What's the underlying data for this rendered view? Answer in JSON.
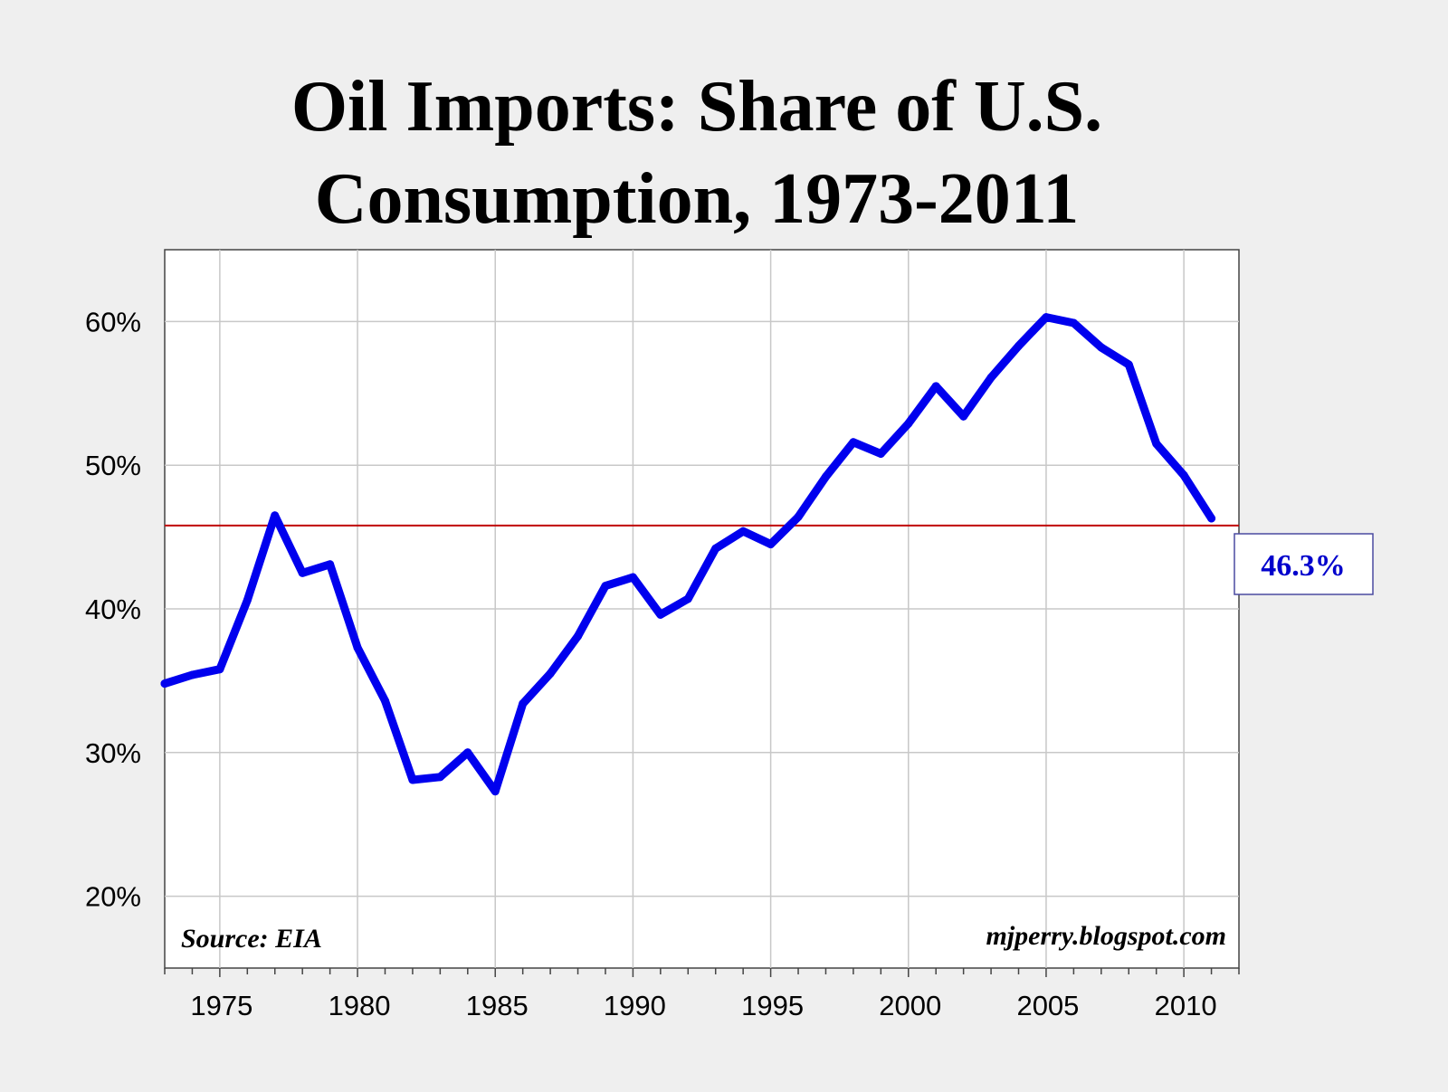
{
  "chart_data": {
    "type": "line",
    "title": "Oil Imports: Share of U.S. Consumption, 1973-2011",
    "title_lines": [
      "Oil Imports: Share of U.S.",
      "Consumption, 1973-2011"
    ],
    "xlabel": "",
    "ylabel": "",
    "xlim": [
      1973,
      2012
    ],
    "ylim": [
      15,
      65
    ],
    "x_ticks": [
      1975,
      1980,
      1985,
      1990,
      1995,
      2000,
      2005,
      2010
    ],
    "x_tick_labels": [
      "1975",
      "1980",
      "1985",
      "1990",
      "1995",
      "2000",
      "2005",
      "2010"
    ],
    "y_ticks": [
      20,
      30,
      40,
      50,
      60
    ],
    "y_tick_labels": [
      "20%",
      "30%",
      "40%",
      "50%",
      "60%"
    ],
    "grid": true,
    "series": [
      {
        "color": "#0000ee",
        "x": [
          1973,
          1974,
          1975,
          1976,
          1977,
          1978,
          1979,
          1980,
          1981,
          1982,
          1983,
          1984,
          1985,
          1986,
          1987,
          1988,
          1989,
          1990,
          1991,
          1992,
          1993,
          1994,
          1995,
          1996,
          1997,
          1998,
          1999,
          2000,
          2001,
          2002,
          2003,
          2004,
          2005,
          2006,
          2007,
          2008,
          2009,
          2010,
          2011
        ],
        "values": [
          34.8,
          35.4,
          35.8,
          40.6,
          46.5,
          42.5,
          43.1,
          37.3,
          33.6,
          28.1,
          28.3,
          30.0,
          27.3,
          33.4,
          35.5,
          38.1,
          41.6,
          42.2,
          39.6,
          40.7,
          44.2,
          45.4,
          44.5,
          46.4,
          49.2,
          51.6,
          50.8,
          52.9,
          55.5,
          53.4,
          56.1,
          58.3,
          60.3,
          59.9,
          58.2,
          57.0,
          51.5,
          49.3,
          46.3
        ]
      }
    ],
    "reference_line": {
      "value": 45.8,
      "color": "#c00000"
    },
    "callout": {
      "text": "46.3%",
      "color": "#0000cc"
    },
    "annotations": {
      "source": "Source: EIA",
      "credit": "mjperry.blogspot.com"
    }
  }
}
